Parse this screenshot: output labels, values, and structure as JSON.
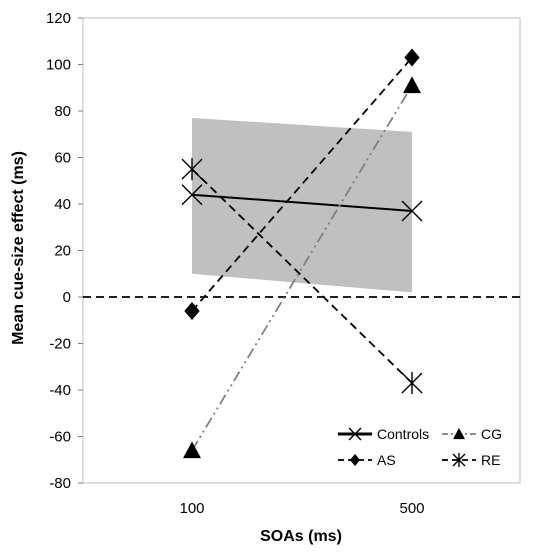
{
  "chart_data": {
    "type": "line",
    "title": "",
    "xlabel": "SOAs (ms)",
    "ylabel": "Mean cue-size effect (ms)",
    "x": [
      "100",
      "500"
    ],
    "ylim": [
      -80,
      120
    ],
    "yticks": [
      -80,
      -60,
      -40,
      -20,
      0,
      20,
      40,
      60,
      80,
      100,
      120
    ],
    "grid": false,
    "legend_position": "bottom-right",
    "zero_reference_line": {
      "y": 0,
      "style": "dashed"
    },
    "shaded_band": {
      "lower": [
        10,
        2
      ],
      "upper": [
        77,
        71
      ],
      "color": "#c0c0c0"
    },
    "series": [
      {
        "name": "Controls",
        "values": [
          44,
          37
        ],
        "color": "#000000",
        "line": "solid",
        "marker": "x"
      },
      {
        "name": "CG",
        "values": [
          -66,
          91
        ],
        "color": "#7f7f7f",
        "line": "dash-dot-dot",
        "marker": "triangle"
      },
      {
        "name": "AS",
        "values": [
          -6,
          103
        ],
        "color": "#000000",
        "line": "dashed",
        "marker": "diamond"
      },
      {
        "name": "RE",
        "values": [
          55,
          -37
        ],
        "color": "#000000",
        "line": "dashed",
        "marker": "asterisk"
      }
    ],
    "legend": [
      {
        "series": 0,
        "label": "Controls"
      },
      {
        "series": 1,
        "label": "CG"
      },
      {
        "series": 2,
        "label": "AS"
      },
      {
        "series": 3,
        "label": "RE"
      }
    ]
  }
}
